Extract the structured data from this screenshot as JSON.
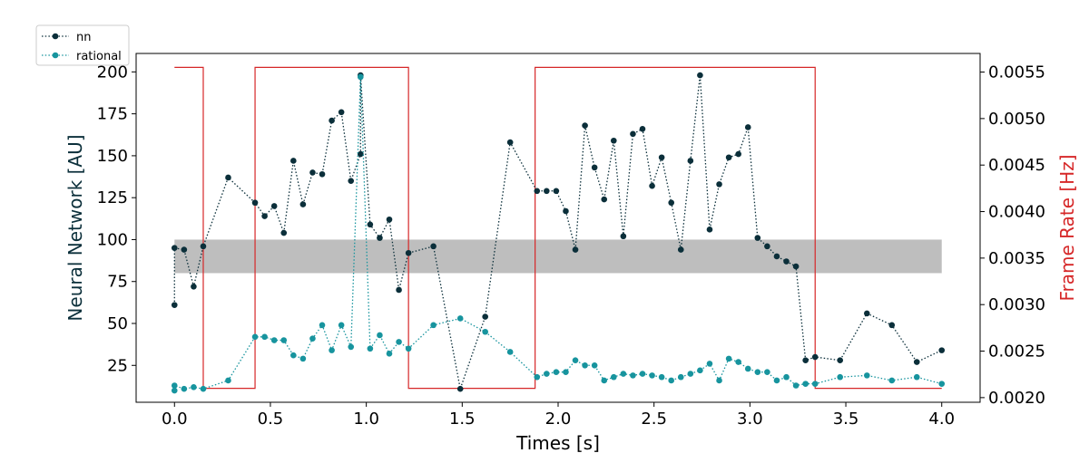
{
  "chart_data": {
    "type": "line",
    "xlabel": "Times [s]",
    "ylabel": "Neural Network [AU]",
    "ylabel_right": "Frame Rate [Hz]",
    "xlim": [
      -0.2,
      4.2
    ],
    "ylim": [
      3,
      211
    ],
    "ylim_right": [
      0.00195,
      0.0057
    ],
    "x_ticks": [
      0.0,
      0.5,
      1.0,
      1.5,
      2.0,
      2.5,
      3.0,
      3.5,
      4.0
    ],
    "x_tick_labels": [
      "0.0",
      "0.5",
      "1.0",
      "1.5",
      "2.0",
      "2.5",
      "3.0",
      "3.5",
      "4.0"
    ],
    "y_ticks": [
      25,
      50,
      75,
      100,
      125,
      150,
      175,
      200
    ],
    "y_tick_labels": [
      "25",
      "50",
      "75",
      "100",
      "125",
      "150",
      "175",
      "200"
    ],
    "y_ticks_right": [
      0.002,
      0.0025,
      0.003,
      0.0035,
      0.004,
      0.0045,
      0.005,
      0.0055
    ],
    "y_tick_labels_right": [
      "0.0020",
      "0.0025",
      "0.0030",
      "0.0035",
      "0.0040",
      "0.0045",
      "0.0050",
      "0.0055"
    ],
    "grid": false,
    "legend": {
      "position": "top-left",
      "entries": [
        "nn",
        "rational"
      ]
    },
    "band": {
      "x": [
        0.0,
        4.0
      ],
      "y": [
        80,
        100
      ],
      "color": "#bebebe"
    },
    "series": [
      {
        "name": "nn",
        "axis": "left",
        "color": "#0b2f3a",
        "style": "dotted-marker",
        "x": [
          0.0,
          0.0,
          0.05,
          0.1,
          0.15,
          0.28,
          0.42,
          0.47,
          0.52,
          0.57,
          0.62,
          0.67,
          0.72,
          0.77,
          0.82,
          0.87,
          0.92,
          0.97,
          0.97,
          1.02,
          1.07,
          1.12,
          1.17,
          1.22,
          1.35,
          1.49,
          1.62,
          1.75,
          1.89,
          1.94,
          1.99,
          2.04,
          2.09,
          2.14,
          2.19,
          2.24,
          2.29,
          2.34,
          2.39,
          2.44,
          2.49,
          2.54,
          2.59,
          2.64,
          2.69,
          2.74,
          2.79,
          2.84,
          2.89,
          2.94,
          2.99,
          3.04,
          3.09,
          3.14,
          3.19,
          3.24,
          3.29,
          3.34,
          3.47,
          3.61,
          3.74,
          3.87,
          4.0
        ],
        "y": [
          61,
          95,
          94,
          72,
          96,
          137,
          122,
          114,
          120,
          104,
          147,
          121,
          140,
          139,
          171,
          176,
          135,
          151,
          198,
          109,
          101,
          112,
          70,
          92,
          96,
          11,
          54,
          158,
          129,
          129,
          129,
          117,
          94,
          168,
          143,
          124,
          159,
          102,
          163,
          166,
          132,
          149,
          122,
          94,
          147,
          198,
          106,
          133,
          149,
          151,
          167,
          101,
          96,
          90,
          87,
          84,
          28,
          30,
          28,
          56,
          49,
          27,
          34
        ]
      },
      {
        "name": "rational",
        "axis": "left",
        "color": "#17949e",
        "style": "dotted-marker",
        "x": [
          0.0,
          0.0,
          0.05,
          0.1,
          0.15,
          0.28,
          0.42,
          0.47,
          0.52,
          0.57,
          0.62,
          0.67,
          0.72,
          0.77,
          0.82,
          0.87,
          0.92,
          0.97,
          0.97,
          1.02,
          1.07,
          1.12,
          1.17,
          1.22,
          1.35,
          1.49,
          1.62,
          1.75,
          1.89,
          1.94,
          1.99,
          2.04,
          2.09,
          2.14,
          2.19,
          2.24,
          2.29,
          2.34,
          2.39,
          2.44,
          2.49,
          2.54,
          2.59,
          2.64,
          2.69,
          2.74,
          2.79,
          2.84,
          2.89,
          2.94,
          2.99,
          3.04,
          3.09,
          3.14,
          3.19,
          3.24,
          3.29,
          3.34,
          3.47,
          3.61,
          3.74,
          3.87,
          4.0
        ],
        "y": [
          10,
          13,
          11,
          12,
          11,
          16,
          42,
          42,
          40,
          40,
          31,
          29,
          41,
          49,
          34,
          49,
          36,
          197,
          197,
          35,
          43,
          32,
          39,
          35,
          49,
          53,
          45,
          33,
          18,
          20,
          21,
          21,
          28,
          25,
          25,
          16,
          18,
          20,
          19,
          20,
          19,
          18,
          16,
          18,
          20,
          22,
          26,
          16,
          29,
          27,
          23,
          21,
          21,
          16,
          18,
          13,
          14,
          14,
          18,
          19,
          16,
          18,
          14
        ]
      },
      {
        "name": "frame rate",
        "axis": "right",
        "color": "#d62728",
        "style": "step",
        "x": [
          0.0,
          0.15,
          0.15,
          0.42,
          0.42,
          1.22,
          1.22,
          1.88,
          1.88,
          3.34,
          3.34,
          4.0
        ],
        "y": [
          0.00555,
          0.00555,
          0.0021,
          0.0021,
          0.00555,
          0.00555,
          0.0021,
          0.0021,
          0.00555,
          0.00555,
          0.0021,
          0.0021
        ]
      }
    ]
  }
}
